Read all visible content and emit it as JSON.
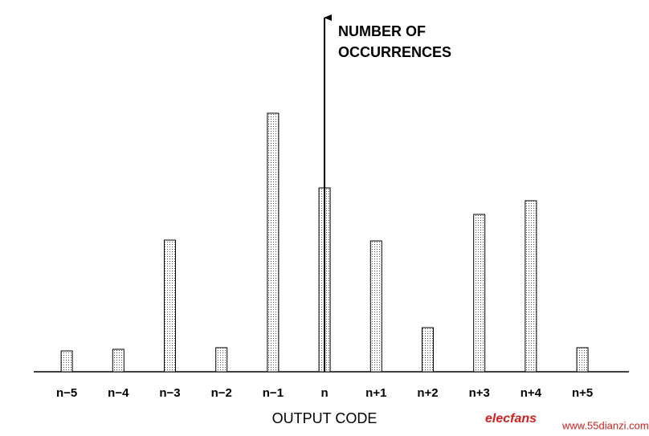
{
  "chart_data": {
    "type": "bar",
    "ylabel": [
      "NUMBER OF",
      "OCCURRENCES"
    ],
    "xlabel": "OUTPUT CODE",
    "categories": [
      "n−5",
      "n−4",
      "n−3",
      "n−2",
      "n−1",
      "n",
      "n+1",
      "n+2",
      "n+3",
      "n+4",
      "n+5"
    ],
    "values": [
      26,
      28,
      164,
      30,
      322,
      229,
      163,
      55,
      196,
      213,
      30
    ],
    "ylim": [
      0,
      443
    ],
    "color": "#ffffff",
    "watermark": [
      "elecfans",
      "www.55dianzi.com"
    ]
  }
}
